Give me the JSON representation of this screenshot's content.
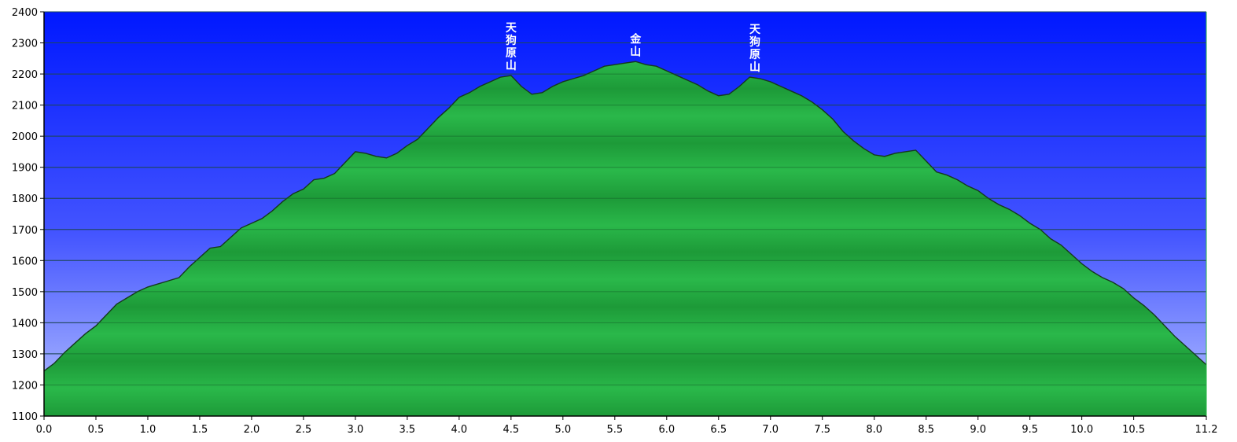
{
  "chart_data": {
    "type": "area",
    "xlim": [
      0,
      11.2
    ],
    "ylim": [
      1100,
      2400
    ],
    "x_ticks": [
      "0.0",
      "0.5",
      "1.0",
      "1.5",
      "2.0",
      "2.5",
      "3.0",
      "3.5",
      "4.0",
      "4.5",
      "5.0",
      "5.5",
      "6.0",
      "6.5",
      "7.0",
      "7.5",
      "8.0",
      "8.5",
      "9.0",
      "9.5",
      "10.0",
      "10.5",
      "11.2"
    ],
    "y_ticks": [
      "1100",
      "1200",
      "1300",
      "1400",
      "1500",
      "1600",
      "1700",
      "1800",
      "1900",
      "2000",
      "2100",
      "2200",
      "2300",
      "2400"
    ],
    "grid": true,
    "series": [
      {
        "x": [
          0.0,
          0.1,
          0.2,
          0.3,
          0.4,
          0.5,
          0.6,
          0.7,
          0.8,
          0.9,
          1.0,
          1.1,
          1.2,
          1.3,
          1.4,
          1.5,
          1.6,
          1.7,
          1.8,
          1.9,
          2.0,
          2.1,
          2.2,
          2.3,
          2.4,
          2.5,
          2.6,
          2.7,
          2.8,
          2.9,
          3.0,
          3.1,
          3.2,
          3.3,
          3.4,
          3.5,
          3.6,
          3.7,
          3.8,
          3.9,
          4.0,
          4.1,
          4.2,
          4.3,
          4.4,
          4.5,
          4.6,
          4.7,
          4.8,
          4.9,
          5.0,
          5.1,
          5.2,
          5.3,
          5.4,
          5.5,
          5.6,
          5.7,
          5.8,
          5.9,
          6.0,
          6.1,
          6.2,
          6.3,
          6.4,
          6.5,
          6.6,
          6.7,
          6.8,
          6.9,
          7.0,
          7.1,
          7.2,
          7.3,
          7.4,
          7.5,
          7.6,
          7.7,
          7.8,
          7.9,
          8.0,
          8.1,
          8.2,
          8.3,
          8.4,
          8.5,
          8.6,
          8.7,
          8.8,
          8.9,
          9.0,
          9.1,
          9.2,
          9.3,
          9.4,
          9.5,
          9.6,
          9.7,
          9.8,
          9.9,
          10.0,
          10.1,
          10.2,
          10.3,
          10.4,
          10.5,
          10.6,
          10.7,
          10.8,
          10.9,
          11.0,
          11.1,
          11.2
        ],
        "values": [
          1245,
          1270,
          1305,
          1335,
          1365,
          1390,
          1425,
          1460,
          1480,
          1500,
          1515,
          1525,
          1535,
          1545,
          1580,
          1610,
          1640,
          1645,
          1675,
          1705,
          1720,
          1735,
          1760,
          1790,
          1815,
          1830,
          1860,
          1865,
          1880,
          1915,
          1950,
          1945,
          1935,
          1930,
          1945,
          1970,
          1990,
          2025,
          2060,
          2090,
          2125,
          2140,
          2160,
          2175,
          2190,
          2195,
          2160,
          2135,
          2140,
          2160,
          2175,
          2185,
          2195,
          2210,
          2225,
          2230,
          2235,
          2240,
          2230,
          2225,
          2210,
          2195,
          2180,
          2165,
          2145,
          2130,
          2135,
          2160,
          2190,
          2185,
          2175,
          2160,
          2145,
          2130,
          2110,
          2085,
          2055,
          2015,
          1985,
          1960,
          1940,
          1935,
          1945,
          1950,
          1955,
          1920,
          1885,
          1875,
          1860,
          1840,
          1825,
          1800,
          1780,
          1765,
          1745,
          1720,
          1700,
          1670,
          1650,
          1620,
          1590,
          1565,
          1545,
          1530,
          1510,
          1480,
          1455,
          1425,
          1390,
          1355,
          1325,
          1295,
          1265
        ]
      }
    ],
    "annotations": [
      {
        "x": 4.5,
        "text": "天狗原山"
      },
      {
        "x": 5.7,
        "text": "金山"
      },
      {
        "x": 6.85,
        "text": "天狗原山"
      }
    ]
  }
}
